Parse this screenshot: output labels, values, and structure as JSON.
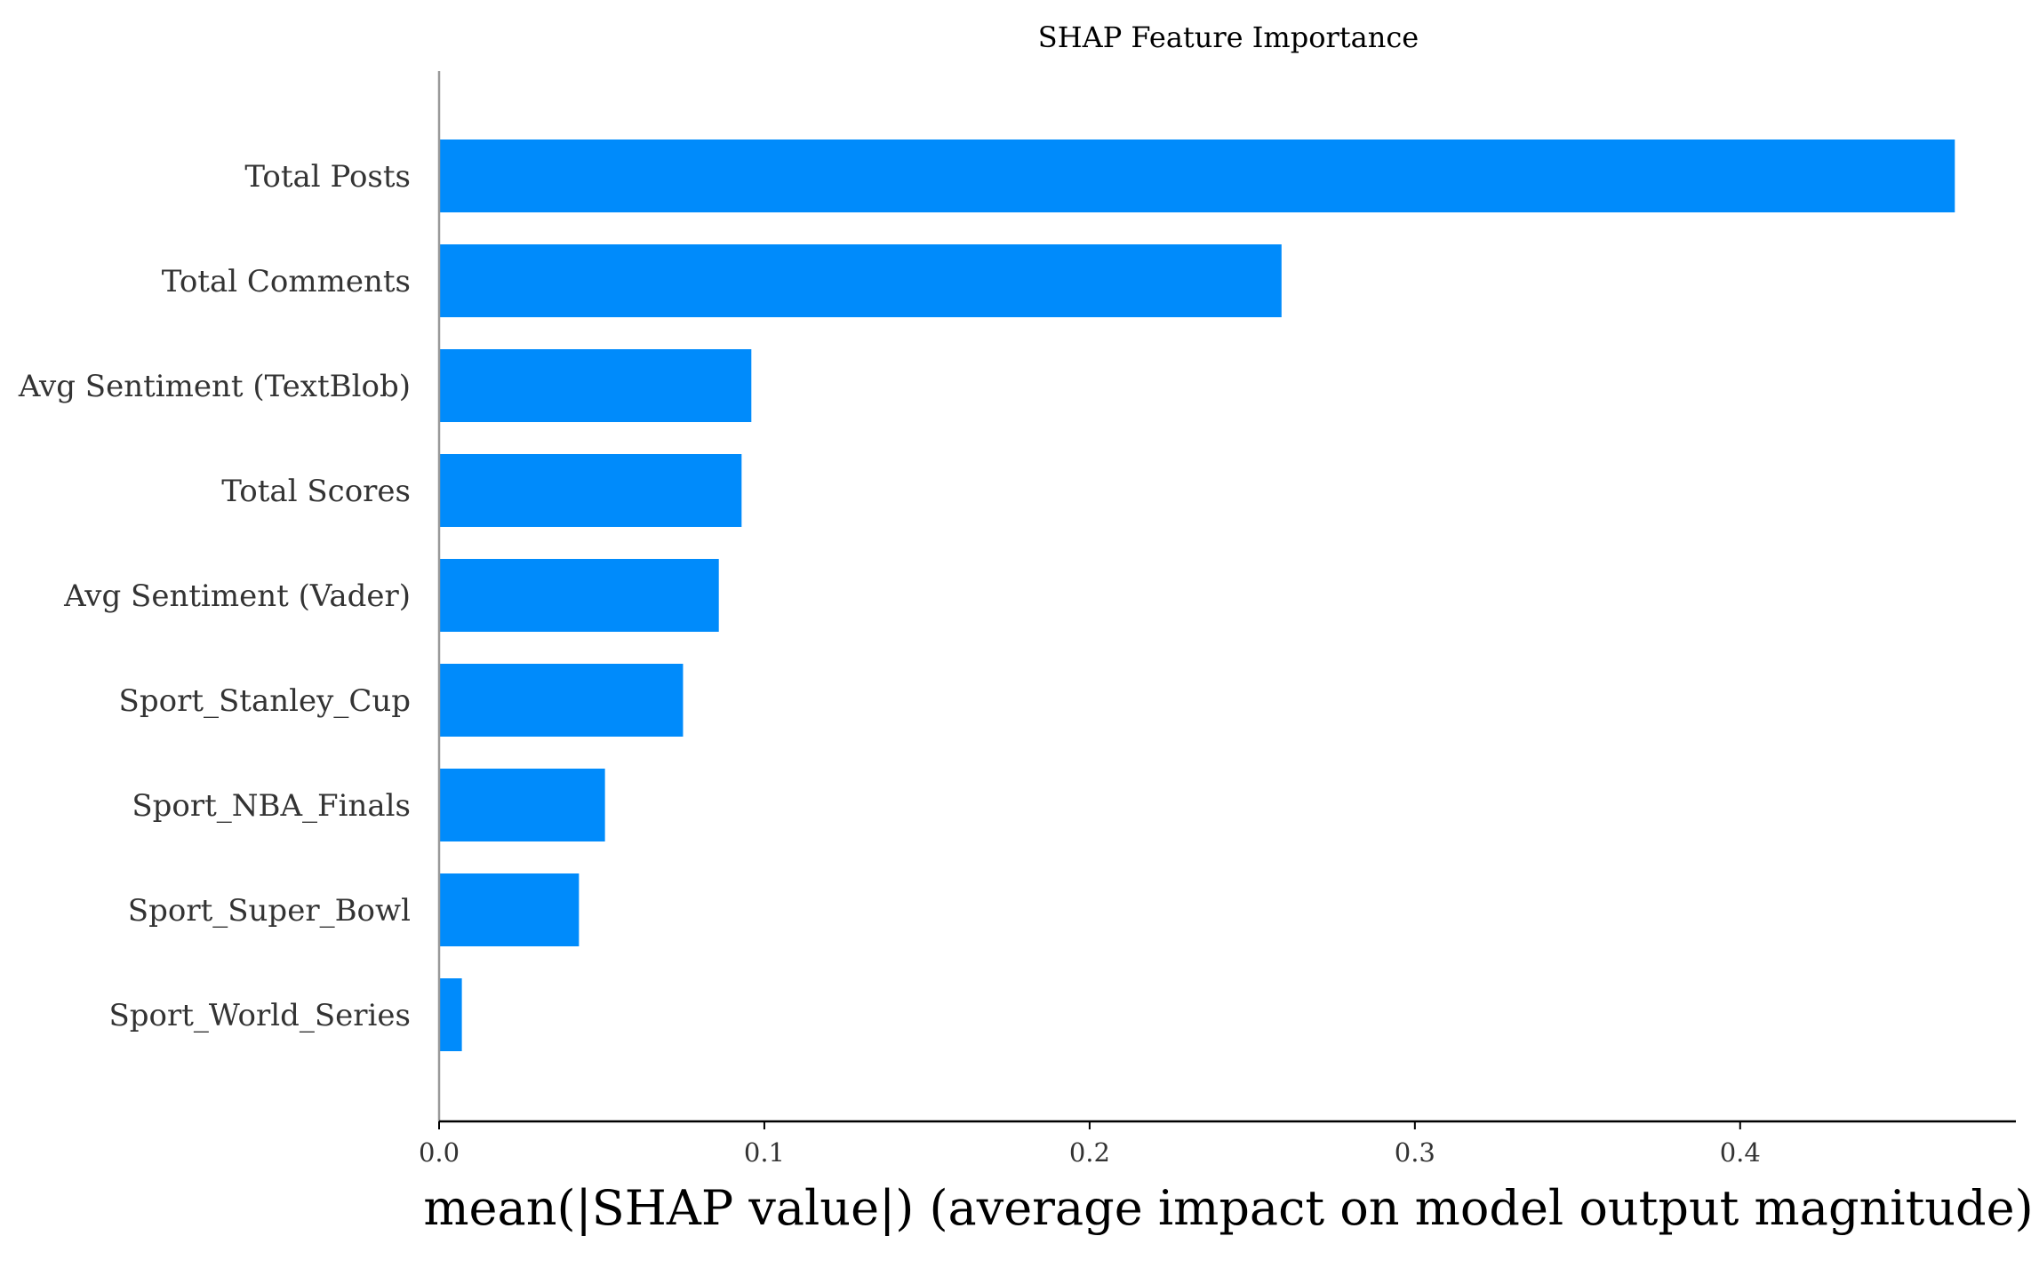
{
  "chart_data": {
    "type": "bar",
    "orientation": "horizontal",
    "title": "SHAP Feature Importance",
    "xlabel": "mean(|SHAP value|) (average impact on model output magnitude)",
    "ylabel": "",
    "categories": [
      "Total Posts",
      "Total Comments",
      "Avg Sentiment (TextBlob)",
      "Total Scores",
      "Avg Sentiment (Vader)",
      "Sport_Stanley_Cup",
      "Sport_NBA_Finals",
      "Sport_Super_Bowl",
      "Sport_World_Series"
    ],
    "values": [
      0.466,
      0.259,
      0.096,
      0.093,
      0.086,
      0.075,
      0.051,
      0.043,
      0.007
    ],
    "xlim": [
      0,
      0.49
    ],
    "xticks": [
      0.0,
      0.1,
      0.2,
      0.3,
      0.4
    ],
    "xtick_labels": [
      "0.0",
      "0.1",
      "0.2",
      "0.3",
      "0.4"
    ],
    "bar_color": "#008bfb",
    "grid": false,
    "legend": "none"
  }
}
